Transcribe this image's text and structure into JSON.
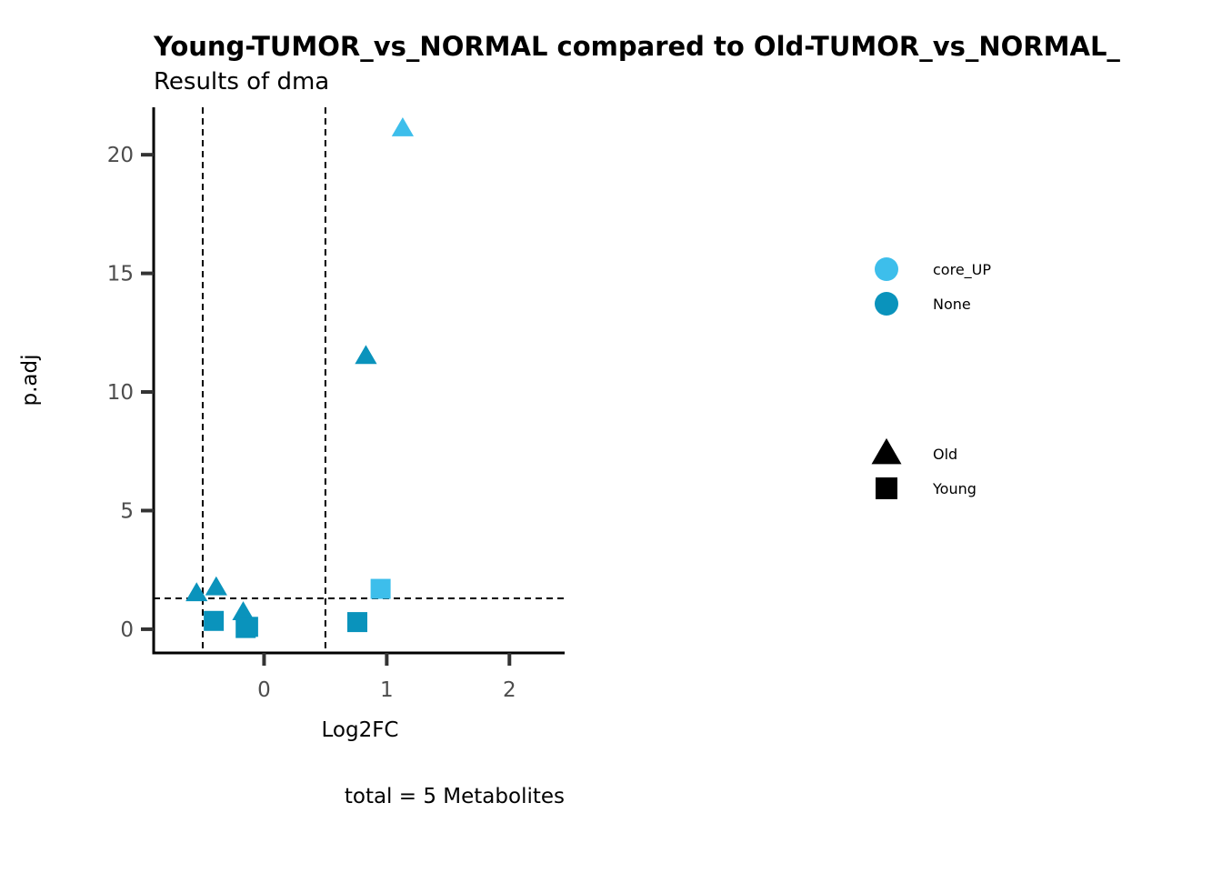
{
  "chart_data": {
    "type": "scatter",
    "title": "Young-TUMOR_vs_NORMAL compared to Old-TUMOR_vs_NORMAL_",
    "subtitle": "Results of dma",
    "xlabel": "Log2FC",
    "ylabel": "p.adj",
    "caption": "total = 5 Metabolites",
    "xlim": [
      -0.9,
      2.45
    ],
    "ylim": [
      -1.0,
      22.0
    ],
    "xticks": [
      0,
      1,
      2
    ],
    "yticks": [
      0,
      5,
      10,
      15,
      20
    ],
    "xtick_labels": [
      "0",
      "1",
      "2"
    ],
    "ytick_labels": [
      "0",
      "5",
      "10",
      "15",
      "20"
    ],
    "reference_lines": {
      "vertical": [
        -0.5,
        0.5
      ],
      "horizontal": [
        1.3
      ]
    },
    "grid": false,
    "legend_position": "right",
    "color_legend": [
      {
        "label": "core_UP",
        "color": "#3dbeeb"
      },
      {
        "label": "None",
        "color": "#0a93bc"
      }
    ],
    "shape_legend": [
      {
        "label": "Old",
        "shape": "triangle"
      },
      {
        "label": "Young",
        "shape": "square"
      }
    ],
    "points": [
      {
        "x": 1.13,
        "y": 21.1,
        "shape": "triangle",
        "group": "core_UP"
      },
      {
        "x": 0.83,
        "y": 11.5,
        "shape": "triangle",
        "group": "None"
      },
      {
        "x": -0.55,
        "y": 1.5,
        "shape": "triangle",
        "group": "None"
      },
      {
        "x": -0.39,
        "y": 1.75,
        "shape": "triangle",
        "group": "None"
      },
      {
        "x": -0.17,
        "y": 0.7,
        "shape": "triangle",
        "group": "None"
      },
      {
        "x": 0.95,
        "y": 1.7,
        "shape": "square",
        "group": "core_UP"
      },
      {
        "x": -0.41,
        "y": 0.35,
        "shape": "square",
        "group": "None"
      },
      {
        "x": -0.13,
        "y": 0.1,
        "shape": "square",
        "group": "None"
      },
      {
        "x": 0.76,
        "y": 0.3,
        "shape": "square",
        "group": "None"
      },
      {
        "x": -0.15,
        "y": 0.05,
        "shape": "square",
        "group": "None"
      }
    ]
  }
}
